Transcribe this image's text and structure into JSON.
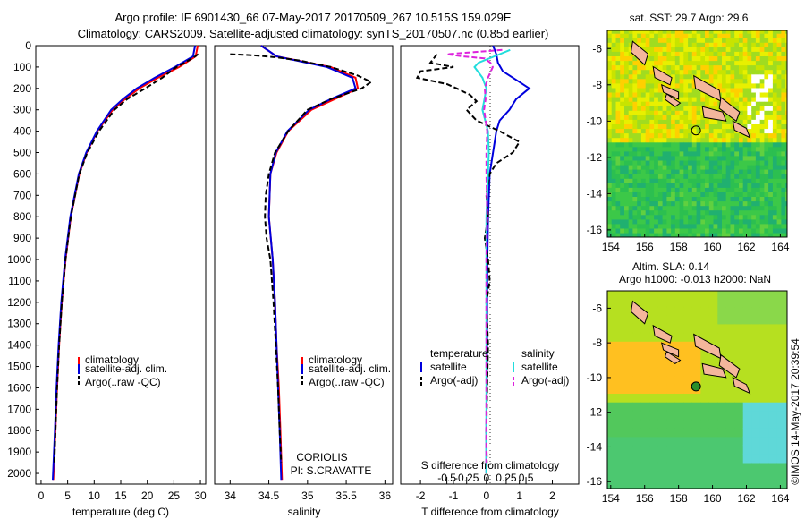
{
  "header": {
    "line1": "Argo profile: IF 6901430_66 07-May-2017 20170509_267 10.515S 159.029E",
    "line2": "Climatology: CARS2009. Satellite-adjusted climatology: synTS_20170507.nc (0.85d earlier)"
  },
  "colors": {
    "climatology": "#ff0000",
    "satellite": "#0000dd",
    "argo": "#000000",
    "sat_s": "#22dddd",
    "argo_s": "#dd22dd",
    "land": "#f4b69c"
  },
  "chart_data": [
    {
      "type": "line",
      "xlabel": "temperature (deg C)",
      "ylabel": "",
      "xlim": [
        -1,
        31
      ],
      "ylim": [
        2050,
        0
      ],
      "xticks": [
        0,
        5,
        10,
        15,
        20,
        25,
        30
      ],
      "yticks": [
        0,
        100,
        200,
        300,
        400,
        500,
        600,
        700,
        800,
        900,
        1000,
        1100,
        1200,
        1300,
        1400,
        1500,
        1600,
        1700,
        1800,
        1900,
        2000
      ],
      "legend": [
        "climatology",
        "satellite-adj. clim.",
        "Argo(..raw -QC)"
      ],
      "legend_position": "lower-center",
      "series": [
        {
          "name": "climatology",
          "depth": [
            0,
            50,
            100,
            150,
            200,
            250,
            300,
            400,
            500,
            600,
            800,
            1000,
            1200,
            1400,
            1600,
            1800,
            2030
          ],
          "values": [
            29.5,
            29.1,
            26.0,
            22.0,
            18.5,
            15.8,
            13.5,
            10.6,
            8.6,
            7.2,
            5.6,
            4.6,
            3.9,
            3.4,
            3.0,
            2.7,
            2.3
          ]
        },
        {
          "name": "satellite-adj. clim.",
          "depth": [
            0,
            50,
            100,
            150,
            200,
            250,
            300,
            400,
            500,
            600,
            800,
            1000,
            1200,
            1400,
            1600,
            1800,
            2030
          ],
          "values": [
            29.0,
            28.6,
            25.2,
            21.4,
            18.0,
            15.4,
            13.2,
            10.5,
            8.5,
            7.1,
            5.5,
            4.5,
            3.8,
            3.3,
            2.9,
            2.6,
            2.2
          ]
        },
        {
          "name": "Argo(..raw -QC)",
          "depth": [
            40,
            60,
            80,
            100,
            150,
            200,
            250,
            300,
            400,
            500,
            600,
            800,
            1000,
            1200,
            1400,
            1600,
            1800,
            1950
          ],
          "values": [
            29.6,
            28.4,
            27.0,
            25.5,
            22.8,
            19.6,
            16.2,
            13.8,
            10.9,
            8.7,
            7.2,
            5.6,
            4.6,
            3.9,
            3.4,
            3.0,
            2.7,
            2.5
          ]
        }
      ]
    },
    {
      "type": "line",
      "xlabel": "salinity",
      "xlim": [
        33.8,
        36.1
      ],
      "ylim": [
        2050,
        0
      ],
      "xticks": [
        34,
        34.5,
        35,
        35.5,
        36
      ],
      "legend": [
        "climatology",
        "satellite-adj. clim.",
        "Argo(..raw -QC)"
      ],
      "legend_position": "lower-center",
      "annotation": [
        "CORIOLIS",
        "PI: S.CRAVATTE"
      ],
      "series": [
        {
          "name": "climatology",
          "depth": [
            0,
            50,
            100,
            150,
            200,
            250,
            300,
            400,
            500,
            600,
            800,
            1000,
            1200,
            1400,
            1600,
            1800,
            2030
          ],
          "values": [
            34.4,
            34.6,
            35.3,
            35.62,
            35.65,
            35.35,
            35.05,
            34.75,
            34.6,
            34.52,
            34.5,
            34.55,
            34.58,
            34.6,
            34.63,
            34.65,
            34.67
          ]
        },
        {
          "name": "satellite-adj. clim.",
          "depth": [
            0,
            50,
            100,
            150,
            200,
            250,
            300,
            400,
            500,
            600,
            800,
            1000,
            1200,
            1400,
            1600,
            1800,
            2030
          ],
          "values": [
            34.4,
            34.6,
            35.25,
            35.58,
            35.62,
            35.3,
            35.02,
            34.74,
            34.59,
            34.52,
            34.5,
            34.55,
            34.58,
            34.6,
            34.62,
            34.64,
            34.66
          ]
        },
        {
          "name": "Argo(..raw -QC)",
          "depth": [
            40,
            45,
            55,
            70,
            100,
            140,
            170,
            200,
            250,
            300,
            400,
            500,
            600,
            700,
            800,
            900,
            1000,
            1200,
            1400,
            1600,
            1800,
            1950
          ],
          "values": [
            34.0,
            34.3,
            34.6,
            34.9,
            35.3,
            35.65,
            35.82,
            35.7,
            35.3,
            35.0,
            34.75,
            34.58,
            34.5,
            34.46,
            34.45,
            34.47,
            34.52,
            34.56,
            34.59,
            34.62,
            34.64,
            34.66
          ]
        }
      ]
    },
    {
      "type": "line",
      "xlabel": "T difference from climatology",
      "xlabel_top": "S difference from climatology",
      "xlim": [
        -2.6,
        2.8
      ],
      "ylim": [
        2050,
        0
      ],
      "xticks": [
        -2,
        -1,
        0,
        1,
        2
      ],
      "xticks_top": [
        -0.5,
        -0.25,
        0,
        0.25,
        0.5
      ],
      "legend_temperature_title": "temperature",
      "legend_salinity_title": "salinity",
      "legend": [
        "satellite",
        "Argo(-adj)",
        "satellite",
        "Argo(-adj)"
      ],
      "series": [
        {
          "name": "satellite",
          "variable": "T",
          "depth": [
            0,
            40,
            80,
            120,
            160,
            200,
            250,
            300,
            350,
            400,
            500,
            600,
            800,
            1000,
            1200,
            1400,
            1600,
            1800,
            2000
          ],
          "values": [
            0.2,
            0.3,
            0.35,
            0.5,
            0.9,
            1.3,
            0.9,
            0.7,
            0.4,
            0.3,
            0.2,
            0.1,
            0.05,
            0.03,
            0.02,
            0.02,
            0.01,
            0.0,
            0.0
          ]
        },
        {
          "name": "Argo(-adj)",
          "variable": "T",
          "depth": [
            40,
            60,
            80,
            100,
            120,
            150,
            180,
            200,
            230,
            260,
            300,
            350,
            400,
            450,
            500,
            550,
            600,
            700,
            800,
            900,
            1000,
            1100,
            1200,
            1400,
            1600,
            1800,
            1950
          ],
          "values": [
            -1.5,
            -1.6,
            -1.7,
            -1.0,
            -2.0,
            -2.1,
            -1.2,
            -0.9,
            -0.5,
            -0.3,
            -0.6,
            -0.3,
            0.4,
            1.0,
            0.8,
            0.3,
            0.1,
            0.0,
            0.05,
            -0.05,
            0.05,
            0.1,
            0.0,
            0.05,
            0.02,
            0.0,
            0.01
          ]
        },
        {
          "name": "satellite",
          "variable": "S",
          "depth": [
            20,
            50,
            80,
            100,
            150,
            200,
            300,
            400,
            500,
            600,
            800,
            1000,
            1200,
            1400,
            1600,
            1800,
            2000
          ],
          "values": [
            0.3,
            0.1,
            -0.1,
            -0.15,
            -0.05,
            0.0,
            -0.05,
            0.02,
            0.03,
            0.02,
            0.0,
            0.0,
            0.0,
            0.0,
            0.0,
            0.0,
            0.0
          ]
        },
        {
          "name": "Argo(-adj)",
          "variable": "S",
          "depth": [
            20,
            40,
            50,
            60,
            80,
            100,
            150,
            200,
            250,
            300,
            400,
            500,
            600,
            800,
            1000,
            1200,
            1400,
            1600,
            1800,
            1950
          ],
          "values": [
            0.2,
            -0.5,
            -0.3,
            -0.02,
            0.05,
            0.08,
            0.02,
            -0.02,
            -0.01,
            -0.03,
            0.01,
            0.0,
            0.0,
            0.01,
            0.0,
            0.0,
            0.0,
            0.0,
            0.0,
            0.0
          ]
        }
      ]
    },
    {
      "type": "heatmap",
      "title": "sat. SST: 29.7 Argo: 29.6",
      "xlim": [
        153.8,
        164.4
      ],
      "ylim": [
        -16.4,
        -5.0
      ],
      "xticks": [
        154,
        156,
        158,
        160,
        162,
        164
      ],
      "yticks": [
        -6,
        -8,
        -10,
        -12,
        -14,
        -16
      ],
      "marker": {
        "lon": 159.029,
        "lat": -10.515
      }
    },
    {
      "type": "heatmap",
      "title": "Altim. SLA: 0.14",
      "subtitle": "Argo h1000: -0.013 h2000: NaN",
      "xlim": [
        153.8,
        164.4
      ],
      "ylim": [
        -16.4,
        -5.0
      ],
      "xticks": [
        154,
        156,
        158,
        160,
        162,
        164
      ],
      "yticks": [
        -6,
        -8,
        -10,
        -12,
        -14,
        -16
      ],
      "marker": {
        "lon": 159.029,
        "lat": -10.515
      }
    }
  ],
  "footer": {
    "timestamp": "©IMOS 14-May-2017 20:39:54"
  }
}
